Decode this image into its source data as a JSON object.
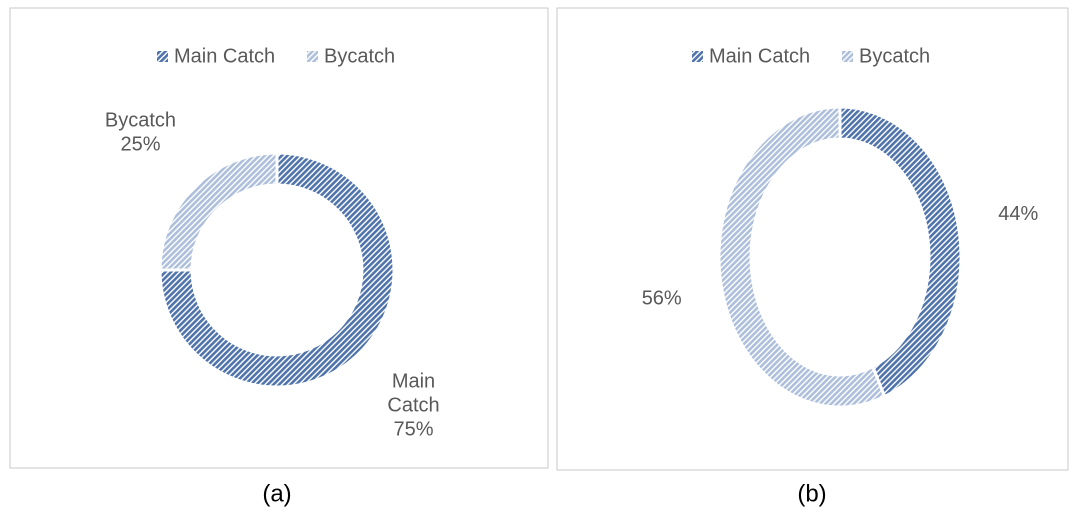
{
  "chart_data": [
    {
      "type": "donut",
      "caption": "(a)",
      "categories": [
        "Main Catch",
        "Bycatch"
      ],
      "values": [
        75,
        25
      ],
      "value_labels": [
        "75%",
        "25%"
      ],
      "colors": [
        "#4f73aa",
        "#aebfdc"
      ],
      "label_shows_category": true,
      "legend": "top"
    },
    {
      "type": "donut",
      "caption": "(b)",
      "categories": [
        "Main Catch",
        "Bycatch"
      ],
      "values": [
        44,
        56
      ],
      "value_labels": [
        "44%",
        "56%"
      ],
      "colors": [
        "#4f73aa",
        "#aebfdc"
      ],
      "label_shows_category": false,
      "legend": "top"
    }
  ]
}
